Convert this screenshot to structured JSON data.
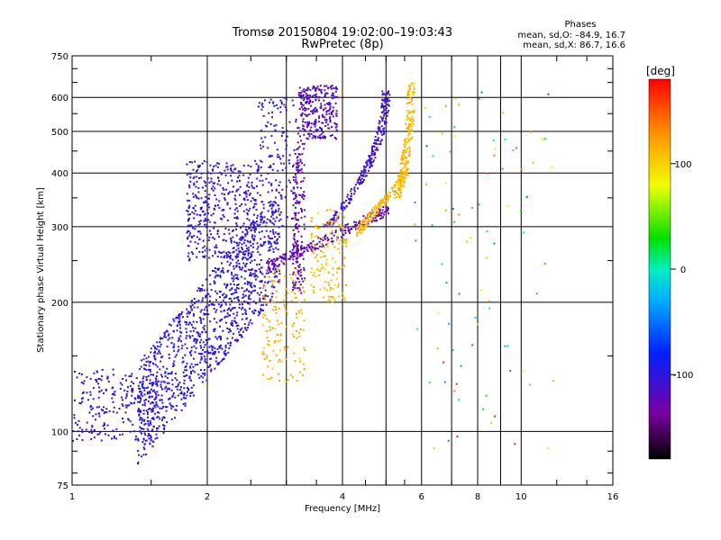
{
  "chart_data": {
    "type": "scatter",
    "title": "Tromsø 20150804 19:02:00–19:03:43",
    "subtitle": "RwPretec (8p)",
    "xlabel": "Frequency [MHz]",
    "ylabel": "Stationary phase Virtual Height [km]",
    "xscale": "log",
    "yscale": "log",
    "xlim": [
      1,
      16
    ],
    "ylim": [
      75,
      750
    ],
    "x_ticks": [
      1,
      2,
      4,
      6,
      8,
      10,
      16
    ],
    "x_gridlines": [
      1,
      2,
      3,
      4,
      5,
      6,
      7,
      8,
      9,
      10,
      16
    ],
    "y_ticks": [
      75,
      100,
      200,
      300,
      400,
      500,
      600,
      750
    ],
    "y_gridlines": [
      100,
      200,
      300,
      400,
      500,
      600
    ],
    "grid": true,
    "phase_box": {
      "title": "Phases",
      "line1": "mean, sd,O: –84.9, 16.7",
      "line2": "mean, sd,X:  86.7, 16.6"
    },
    "colorbar": {
      "label": "[deg]",
      "range": [
        -180,
        180
      ],
      "ticks": [
        100,
        0,
        -100
      ],
      "colormap": "rainbow (black→purple→blue→cyan→green→yellow→red)"
    },
    "clusters": [
      {
        "name": "low-freq-blue",
        "freq": [
          1.0,
          1.55
        ],
        "height": [
          95,
          140
        ],
        "phase": -105
      },
      {
        "name": "blue-trace-main",
        "freq": [
          1.4,
          2.9
        ],
        "height": [
          110,
          330
        ],
        "phase": -100
      },
      {
        "name": "blue-upper-band",
        "freq": [
          1.8,
          2.6
        ],
        "height": [
          250,
          430
        ],
        "phase": -102
      },
      {
        "name": "blue-branch-ascending",
        "freq": [
          2.6,
          3.2
        ],
        "height": [
          300,
          600
        ],
        "phase": -105
      },
      {
        "name": "purple-cusp-curve",
        "freq": [
          2.7,
          5.1
        ],
        "height": [
          240,
          330
        ],
        "phase": -125
      },
      {
        "name": "purple-vertical",
        "freq": [
          3.1,
          3.3
        ],
        "height": [
          210,
          480
        ],
        "phase": -125
      },
      {
        "name": "purple-top-cluster",
        "freq": [
          3.2,
          3.9
        ],
        "height": [
          480,
          640
        ],
        "phase": -120
      },
      {
        "name": "blue-right-arc",
        "freq": [
          3.7,
          5.0
        ],
        "height": [
          300,
          620
        ],
        "phase": -110
      },
      {
        "name": "yellow-x-trace-low",
        "freq": [
          2.65,
          3.3
        ],
        "height": [
          130,
          240
        ],
        "phase": 115
      },
      {
        "name": "yellow-x-trace-mid",
        "freq": [
          3.4,
          4.1
        ],
        "height": [
          200,
          330
        ],
        "phase": 110
      },
      {
        "name": "yellow-x-trace-high",
        "freq": [
          4.3,
          5.6
        ],
        "height": [
          290,
          400
        ],
        "phase": 110
      },
      {
        "name": "yellow-vertical-cusp",
        "freq": [
          5.3,
          5.7
        ],
        "height": [
          350,
          650
        ],
        "phase": 110
      },
      {
        "name": "scattered-noise",
        "freq": [
          5.7,
          12
        ],
        "height": [
          90,
          640
        ],
        "phase": 60
      }
    ]
  }
}
